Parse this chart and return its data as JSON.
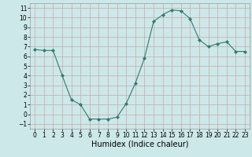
{
  "x": [
    0,
    1,
    2,
    3,
    4,
    5,
    6,
    7,
    8,
    9,
    10,
    11,
    12,
    13,
    14,
    15,
    16,
    17,
    18,
    19,
    20,
    21,
    22,
    23
  ],
  "y": [
    6.7,
    6.6,
    6.6,
    4.0,
    1.5,
    1.0,
    -0.5,
    -0.5,
    -0.5,
    -0.3,
    1.1,
    3.2,
    5.8,
    9.6,
    10.3,
    10.8,
    10.7,
    9.9,
    7.7,
    7.0,
    7.3,
    7.5,
    6.5,
    6.5
  ],
  "line_color": "#2e7d6e",
  "marker": "D",
  "marker_size": 2,
  "bg_color": "#cce8e8",
  "grid_color": "#c8a8a8",
  "xlabel": "Humidex (Indice chaleur)",
  "xlim": [
    -0.5,
    23.5
  ],
  "ylim": [
    -1.5,
    11.5
  ],
  "yticks": [
    -1,
    0,
    1,
    2,
    3,
    4,
    5,
    6,
    7,
    8,
    9,
    10,
    11
  ],
  "xticks": [
    0,
    1,
    2,
    3,
    4,
    5,
    6,
    7,
    8,
    9,
    10,
    11,
    12,
    13,
    14,
    15,
    16,
    17,
    18,
    19,
    20,
    21,
    22,
    23
  ],
  "tick_fontsize": 5.5,
  "label_fontsize": 7
}
